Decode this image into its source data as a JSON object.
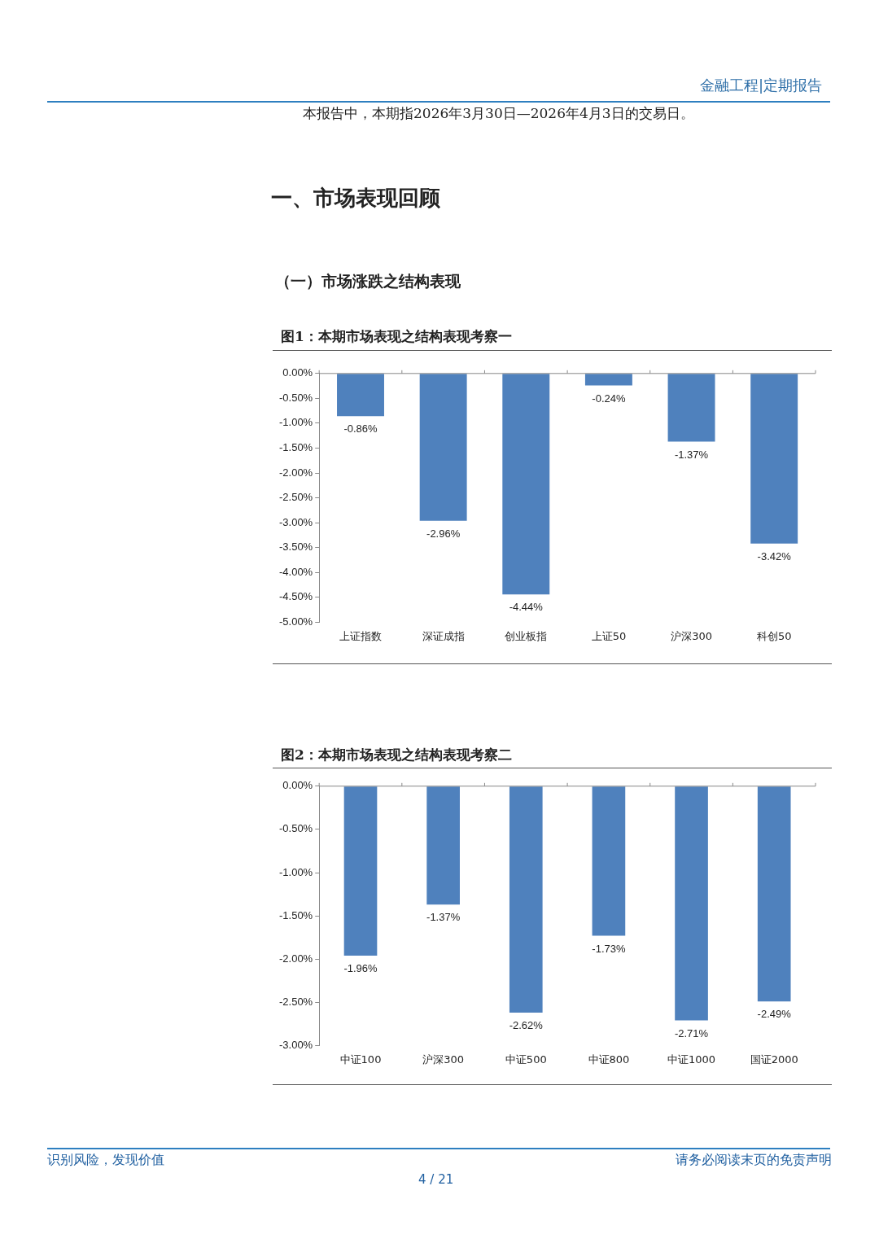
{
  "chart_data": [
    {
      "type": "bar",
      "title": "图1：本期市场表现之结构表现考察一",
      "annotations": [
        "金融工程|定期报告",
        "本报告中，本期指2026年3月30日—2026年4月3日的交易日。",
        "一、市场表现回顾",
        "（一）市场涨跌之结构表现",
        "识别风险，发现价值",
        "请务必阅读末页的免责声明",
        "4 / 21"
      ],
      "categories": [
        "上证指数",
        "深证成指",
        "创业板指",
        "上证50",
        "沪深300",
        "科创50"
      ],
      "values": [
        -0.86,
        -2.96,
        -4.44,
        -0.24,
        -1.37,
        -3.42
      ],
      "value_labels": [
        "-0.86%",
        "-2.96%",
        "-4.44%",
        "-0.24%",
        "-1.37%",
        "-3.42%"
      ],
      "color": "#4f81bd",
      "ylim": [
        -5,
        0
      ],
      "yticks": [
        {
          "value": 0,
          "label": "0.00%"
        },
        {
          "value": -0.5,
          "label": "-0.50%"
        },
        {
          "value": -1,
          "label": "-1.00%"
        },
        {
          "value": -1.5,
          "label": "-1.50%"
        },
        {
          "value": -2,
          "label": "-2.00%"
        },
        {
          "value": -2.5,
          "label": "-2.50%"
        },
        {
          "value": -3,
          "label": "-3.00%"
        },
        {
          "value": -3.5,
          "label": "-3.50%"
        },
        {
          "value": -4,
          "label": "-4.00%"
        },
        {
          "value": -4.5,
          "label": "-4.50%"
        },
        {
          "value": -5,
          "label": "-5.00%"
        }
      ],
      "grid": false,
      "legend": false
    },
    {
      "type": "bar",
      "title": "图2：本期市场表现之结构表现考察二",
      "categories": [
        "中证100",
        "沪深300",
        "中证500",
        "中证800",
        "中证1000",
        "国证2000"
      ],
      "values": [
        -1.96,
        -1.37,
        -2.62,
        -1.73,
        -2.71,
        -2.49
      ],
      "value_labels": [
        "-1.96%",
        "-1.37%",
        "-2.62%",
        "-1.73%",
        "-2.71%",
        "-2.49%"
      ],
      "color": "#4f81bd",
      "ylim": [
        -3,
        0
      ],
      "yticks": [
        {
          "value": 0,
          "label": "0.00%"
        },
        {
          "value": -0.5,
          "label": "-0.50%"
        },
        {
          "value": -1,
          "label": "-1.00%"
        },
        {
          "value": -1.5,
          "label": "-1.50%"
        },
        {
          "value": -2,
          "label": "-2.00%"
        },
        {
          "value": -2.5,
          "label": "-2.50%"
        },
        {
          "value": -3,
          "label": "-3.00%"
        }
      ],
      "grid": false,
      "legend": false
    }
  ]
}
